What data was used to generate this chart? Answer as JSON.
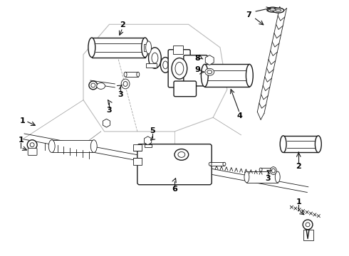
{
  "bg_color": "#ffffff",
  "lc": "#1a1a1a",
  "fig_width": 4.9,
  "fig_height": 3.6,
  "dpi": 100
}
